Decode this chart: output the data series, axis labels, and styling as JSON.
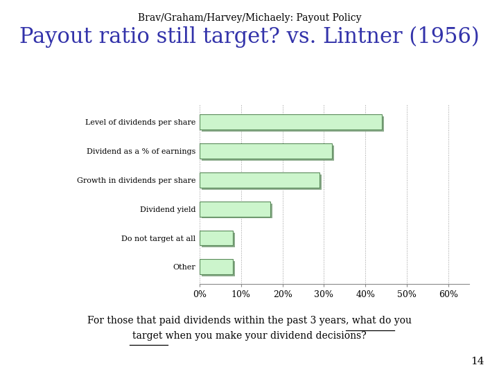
{
  "subtitle": "Brav/Graham/Harvey/Michaely: Payout Policy",
  "title": "Payout ratio still target? vs. Lintner (1956)",
  "categories": [
    "Other",
    "Do not target at all",
    "Dividend yield",
    "Growth in dividends per share",
    "Dividend as a % of earnings",
    "Level of dividends per share"
  ],
  "values": [
    0.08,
    0.08,
    0.17,
    0.29,
    0.32,
    0.44
  ],
  "bar_face_color": "#ccf5cc",
  "bar_edge_color": "#5a8a5a",
  "bar_shadow_color": "#8aaa8a",
  "wall_color": "#999999",
  "xlabel_ticks": [
    "0%",
    "10%",
    "20%",
    "30%",
    "40%",
    "50%",
    "60%"
  ],
  "xtick_values": [
    0.0,
    0.1,
    0.2,
    0.3,
    0.4,
    0.5,
    0.6
  ],
  "xlim": [
    0.0,
    0.65
  ],
  "footnote_line1": "For those that paid dividends within the past 3 years, what do you",
  "footnote_line2": "target when you make your dividend decisions?",
  "page_number": "14",
  "subtitle_fontsize": 10,
  "title_fontsize": 22,
  "bar_label_fontsize": 8,
  "tick_fontsize": 9,
  "footnote_fontsize": 10,
  "title_color": "#3333aa",
  "subtitle_color": "#000000",
  "background_color": "#ffffff"
}
